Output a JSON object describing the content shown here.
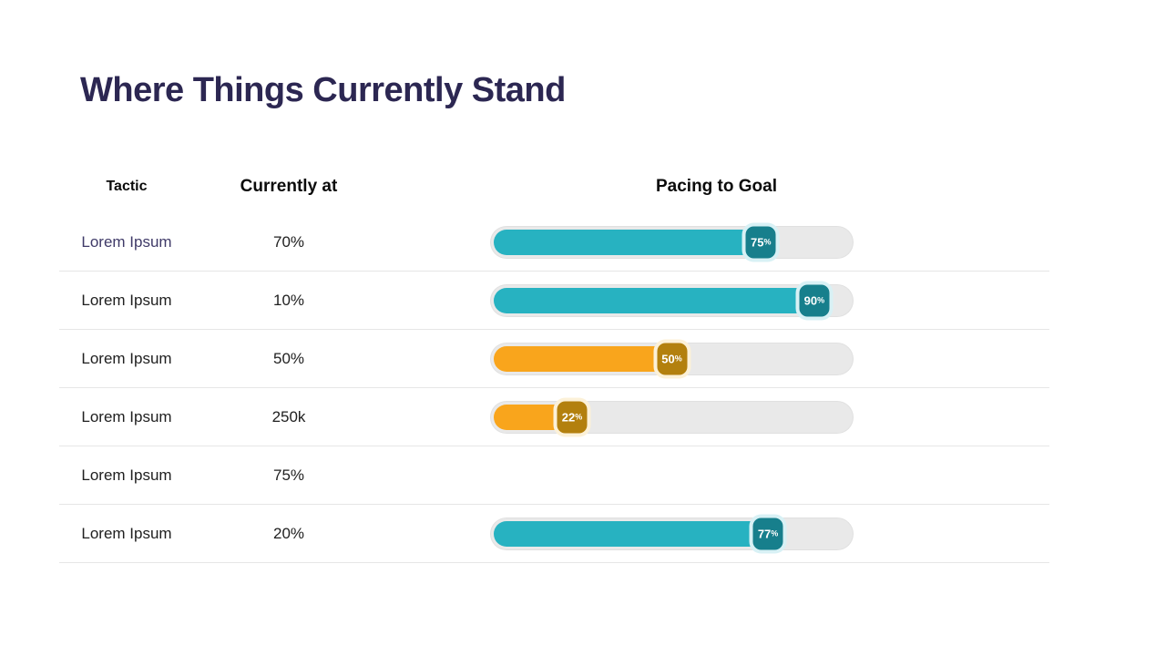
{
  "title": "Where Things Currently Stand",
  "table": {
    "headers": [
      {
        "label": "Tactic"
      },
      {
        "label": "Currently at"
      },
      {
        "label": "Pacing to Goal"
      }
    ],
    "rows": [
      {
        "tactic": "Lorem Ipsum",
        "current": "70%",
        "text_color": "#3f3a68",
        "bar": {
          "percent": 75,
          "value": "75",
          "unit": "%",
          "color": "teal"
        }
      },
      {
        "tactic": "Lorem Ipsum",
        "current": "10%",
        "text_color": null,
        "bar": {
          "percent": 90,
          "value": "90",
          "unit": "%",
          "color": "teal"
        }
      },
      {
        "tactic": "Lorem Ipsum",
        "current": "50%",
        "text_color": null,
        "bar": {
          "percent": 50,
          "value": "50",
          "unit": "%",
          "color": "orange"
        }
      },
      {
        "tactic": "Lorem Ipsum",
        "current": "250k",
        "text_color": null,
        "bar": {
          "percent": 22,
          "value": "22",
          "unit": "%",
          "color": "orange"
        }
      },
      {
        "tactic": "Lorem Ipsum",
        "current": "75%",
        "text_color": null,
        "bar": null
      },
      {
        "tactic": "Lorem Ipsum",
        "current": "20%",
        "text_color": null,
        "bar": {
          "percent": 77,
          "value": "77",
          "unit": "%",
          "color": "teal"
        }
      }
    ]
  },
  "theme": {
    "title_color": "#2c2752",
    "header_color": "#0b0b0b",
    "row_text_color": "#202020",
    "divider_color": "#e6e6e6",
    "track_color": "#e9e9e9",
    "teal": {
      "fill": "#27b2c1",
      "badge": "#177f8c",
      "halo": "#d8f1f5"
    },
    "orange": {
      "fill": "#f9a51c",
      "badge": "#b3800e",
      "halo": "#fcf1d8"
    }
  },
  "chart_data": {
    "type": "bar",
    "title": "Where Things Currently Stand",
    "columns": [
      "Tactic",
      "Currently at",
      "Pacing to Goal"
    ],
    "categories": [
      "Lorem Ipsum",
      "Lorem Ipsum",
      "Lorem Ipsum",
      "Lorem Ipsum",
      "Lorem Ipsum",
      "Lorem Ipsum"
    ],
    "currently_at": [
      "70%",
      "10%",
      "50%",
      "250k",
      "75%",
      "20%"
    ],
    "pacing_to_goal_percent": [
      75,
      90,
      50,
      22,
      null,
      77
    ],
    "bar_colors": [
      "teal",
      "teal",
      "orange",
      "orange",
      null,
      "teal"
    ],
    "xlim": [
      0,
      100
    ],
    "grid": false,
    "legend": false
  }
}
